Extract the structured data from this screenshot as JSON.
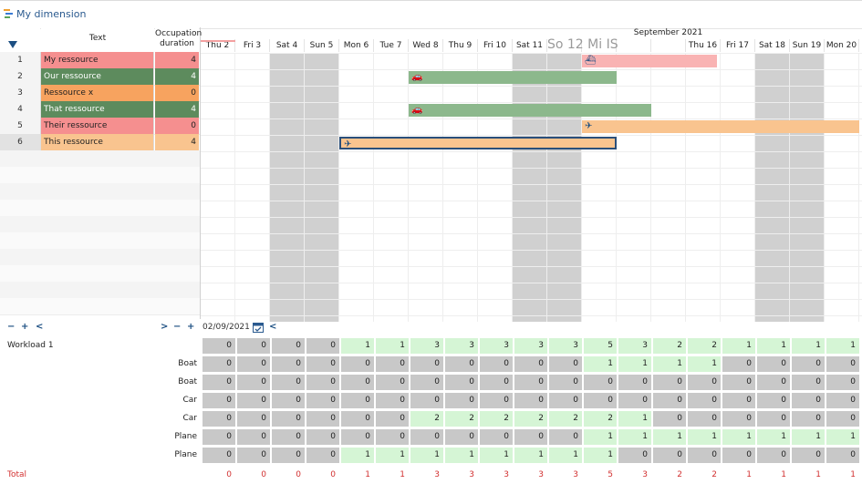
{
  "window": {
    "title": "My dimension",
    "icon": "gantt-dimension-icon"
  },
  "left_grid": {
    "header_text": "Text",
    "header_duration": "Occupation duration",
    "rows": [
      {
        "num": "1",
        "text": "My ressource",
        "duration": "4",
        "color": "#f58f8f"
      },
      {
        "num": "2",
        "text": "Our ressource",
        "duration": "4",
        "color": "#5d8b5d",
        "text_color": "#ffffff"
      },
      {
        "num": "3",
        "text": "Ressource x",
        "duration": "0",
        "color": "#f7a35f"
      },
      {
        "num": "4",
        "text": "That ressource",
        "duration": "4",
        "color": "#5d8b5d",
        "text_color": "#ffffff"
      },
      {
        "num": "5",
        "text": "Their ressource",
        "duration": "0",
        "color": "#f58f8f"
      },
      {
        "num": "6",
        "text": "This ressource",
        "duration": "4",
        "color": "#f9c48f"
      }
    ]
  },
  "gantt": {
    "month_label": "September 2021",
    "days": [
      "Thu 2",
      "Fri 3",
      "Sat 4",
      "Sun 5",
      "Mon 6",
      "Tue 7",
      "Wed 8",
      "Thu 9",
      "Fri 10",
      "Sat 11",
      "",
      "",
      "",
      "",
      "Thu 16",
      "Fri 17",
      "Sat 18",
      "Sun 19",
      "Mon 20"
    ],
    "overlay_label": "So 12 Mi IS",
    "weekend_indices": [
      2,
      3,
      9,
      10,
      16,
      17
    ],
    "bars": [
      {
        "row": 0,
        "start": 11,
        "end": 14.9,
        "color": "#f9b3b3",
        "icon": "boat-icon",
        "glyph": "⛴"
      },
      {
        "row": 1,
        "start": 6,
        "end": 12,
        "color": "#8cb88c",
        "icon": "car-icon",
        "glyph": "🚗"
      },
      {
        "row": 3,
        "start": 6,
        "end": 13,
        "color": "#8cb88c",
        "icon": "car-icon",
        "glyph": "🚗"
      },
      {
        "row": 4,
        "start": 11,
        "end": 19,
        "color": "#f9c48f",
        "icon": "plane-icon",
        "glyph": "✈"
      },
      {
        "row": 5,
        "start": 4,
        "end": 12,
        "color": "#f9c48f",
        "icon": "plane-icon",
        "glyph": "✈",
        "selected": true
      }
    ]
  },
  "controls": {
    "left_minus": "−",
    "left_plus": "+",
    "left_prev": "<",
    "right_next": ">",
    "right_minus": "−",
    "right_plus": "+",
    "date_value": "02/09/2021",
    "gantt_prev": "<"
  },
  "workload": {
    "rows": [
      {
        "label": "Workload 1",
        "align": "left",
        "values": [
          "0",
          "0",
          "0",
          "0",
          "1",
          "1",
          "3",
          "3",
          "3",
          "3",
          "3",
          "5",
          "3",
          "2",
          "2",
          "1",
          "1",
          "1",
          "1"
        ]
      },
      {
        "label": "Boat",
        "align": "right",
        "values": [
          "0",
          "0",
          "0",
          "0",
          "0",
          "0",
          "0",
          "0",
          "0",
          "0",
          "0",
          "1",
          "1",
          "1",
          "1",
          "0",
          "0",
          "0",
          "0"
        ]
      },
      {
        "label": "Boat",
        "align": "right",
        "values": [
          "0",
          "0",
          "0",
          "0",
          "0",
          "0",
          "0",
          "0",
          "0",
          "0",
          "0",
          "0",
          "0",
          "0",
          "0",
          "0",
          "0",
          "0",
          "0"
        ]
      },
      {
        "label": "Car",
        "align": "right",
        "values": [
          "0",
          "0",
          "0",
          "0",
          "0",
          "0",
          "0",
          "0",
          "0",
          "0",
          "0",
          "0",
          "0",
          "0",
          "0",
          "0",
          "0",
          "0",
          "0"
        ]
      },
      {
        "label": "Car",
        "align": "right",
        "values": [
          "0",
          "0",
          "0",
          "0",
          "0",
          "0",
          "2",
          "2",
          "2",
          "2",
          "2",
          "2",
          "1",
          "0",
          "0",
          "0",
          "0",
          "0",
          "0"
        ]
      },
      {
        "label": "Plane",
        "align": "right",
        "values": [
          "0",
          "0",
          "0",
          "0",
          "0",
          "0",
          "0",
          "0",
          "0",
          "0",
          "0",
          "1",
          "1",
          "1",
          "1",
          "1",
          "1",
          "1",
          "1"
        ]
      },
      {
        "label": "Plane",
        "align": "right",
        "values": [
          "0",
          "0",
          "0",
          "0",
          "1",
          "1",
          "1",
          "1",
          "1",
          "1",
          "1",
          "1",
          "0",
          "0",
          "0",
          "0",
          "0",
          "0",
          "0"
        ]
      }
    ],
    "total_label": "Total",
    "total_values": [
      "0",
      "0",
      "0",
      "0",
      "1",
      "1",
      "3",
      "3",
      "3",
      "3",
      "3",
      "5",
      "3",
      "2",
      "2",
      "1",
      "1",
      "1",
      "1"
    ]
  }
}
